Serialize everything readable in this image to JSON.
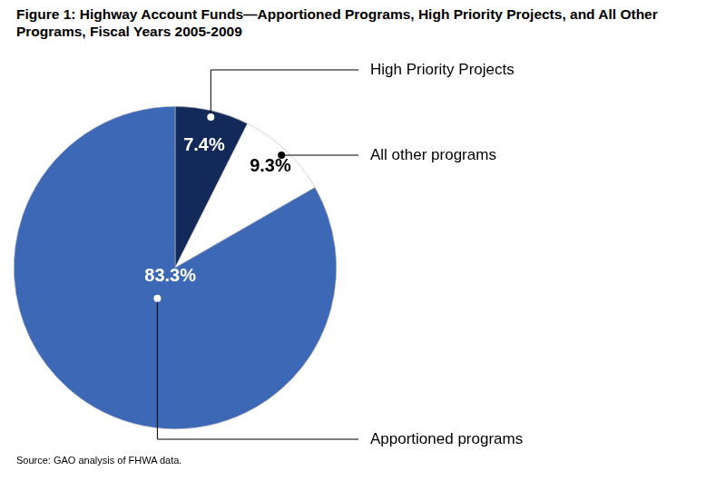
{
  "chart_data": {
    "type": "pie",
    "title": "Figure 1: Highway Account Funds—Apportioned Programs, High Priority Projects, and All Other Programs, Fiscal Years 2005-2009",
    "categories": [
      "High Priority Projects",
      "All other programs",
      "Apportioned programs"
    ],
    "values": [
      7.4,
      9.3,
      83.3
    ],
    "value_labels": [
      "7.4%",
      "9.3%",
      "83.3%"
    ],
    "colors": [
      "#12295a",
      "#ffffff",
      "#3d68b5"
    ],
    "data_labels": true,
    "source": "Source: GAO analysis of FHWA data."
  }
}
